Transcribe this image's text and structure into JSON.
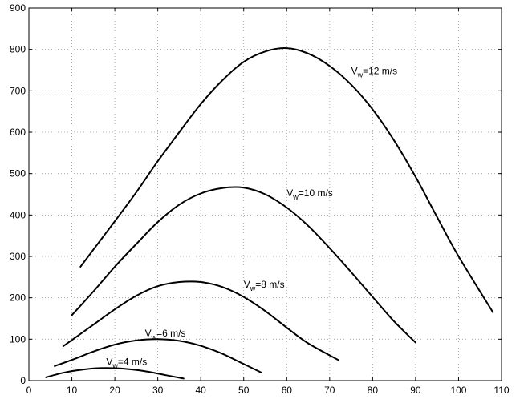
{
  "chart_data": {
    "type": "line",
    "title": "",
    "xlabel": "",
    "ylabel": "",
    "xlim": [
      0,
      110
    ],
    "ylim": [
      0,
      900
    ],
    "xticks": [
      0,
      10,
      20,
      30,
      40,
      50,
      60,
      70,
      80,
      90,
      100,
      110
    ],
    "yticks": [
      0,
      100,
      200,
      300,
      400,
      500,
      600,
      700,
      800,
      900
    ],
    "xtick_labels": [
      "0",
      "10",
      "20",
      "30",
      "40",
      "50",
      "60",
      "70",
      "80",
      "90",
      "100",
      "110"
    ],
    "ytick_labels": [
      "0",
      "100",
      "200",
      "300",
      "400",
      "500",
      "600",
      "700",
      "800",
      "900"
    ],
    "grid": true,
    "line_color": "#000000",
    "series": [
      {
        "label_base": "V",
        "label_sub": "w",
        "label_rest": "=4 m/s",
        "label_at": [
          18,
          38
        ],
        "x": [
          4,
          8,
          12,
          16,
          20,
          24,
          28,
          32,
          36
        ],
        "y": [
          8,
          19,
          26,
          30,
          30,
          27,
          21,
          13,
          5
        ]
      },
      {
        "label_base": "V",
        "label_sub": "w",
        "label_rest": "=6 m/s",
        "label_at": [
          27,
          106
        ],
        "x": [
          6,
          10,
          15,
          20,
          25,
          30,
          35,
          40,
          45,
          50,
          54
        ],
        "y": [
          35,
          50,
          70,
          87,
          97,
          100,
          96,
          84,
          65,
          40,
          20
        ]
      },
      {
        "label_base": "V",
        "label_sub": "w",
        "label_rest": "=8 m/s",
        "label_at": [
          50,
          225
        ],
        "x": [
          8,
          15,
          20,
          25,
          30,
          35,
          40,
          45,
          50,
          55,
          60,
          65,
          72
        ],
        "y": [
          83,
          135,
          172,
          205,
          228,
          238,
          238,
          226,
          202,
          168,
          128,
          90,
          50
        ]
      },
      {
        "label_base": "V",
        "label_sub": "w",
        "label_rest": "=10 m/s",
        "label_at": [
          60,
          445
        ],
        "x": [
          10,
          15,
          20,
          25,
          30,
          35,
          40,
          45,
          50,
          55,
          60,
          65,
          70,
          75,
          80,
          85,
          90
        ],
        "y": [
          158,
          215,
          275,
          330,
          383,
          425,
          452,
          465,
          466,
          450,
          418,
          374,
          320,
          262,
          202,
          143,
          92
        ]
      },
      {
        "label_base": "V",
        "label_sub": "w",
        "label_rest": "=12 m/s",
        "label_at": [
          75,
          740
        ],
        "x": [
          12,
          20,
          25,
          30,
          35,
          40,
          45,
          50,
          55,
          60,
          65,
          70,
          75,
          80,
          85,
          90,
          95,
          100,
          108
        ],
        "y": [
          275,
          385,
          455,
          530,
          600,
          668,
          725,
          770,
          795,
          803,
          790,
          760,
          715,
          655,
          580,
          492,
          395,
          300,
          165
        ]
      }
    ]
  }
}
